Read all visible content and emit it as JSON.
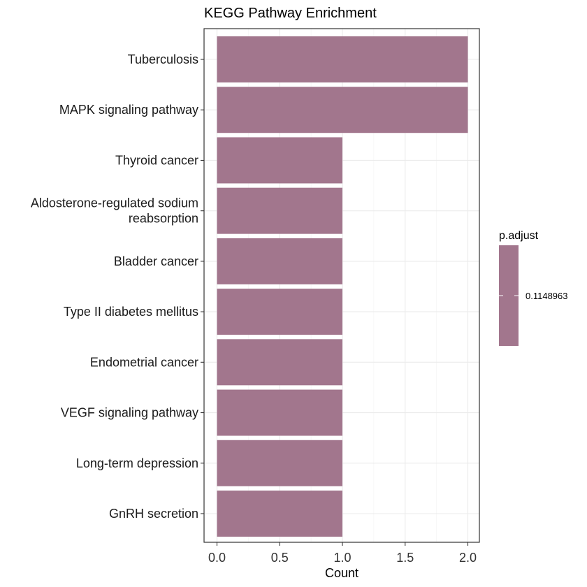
{
  "chart_data": {
    "type": "bar",
    "orientation": "horizontal",
    "title": "KEGG Pathway Enrichment",
    "xlabel": "Count",
    "ylabel": "",
    "xlim": [
      0,
      2
    ],
    "xticks": [
      "0.0",
      "0.5",
      "1.0",
      "1.5",
      "2.0"
    ],
    "grid": true,
    "categories": [
      "Tuberculosis",
      "MAPK signaling pathway",
      "Thyroid cancer",
      "Aldosterone-regulated sodium reabsorption",
      "Bladder cancer",
      "Type II diabetes mellitus",
      "Endometrial cancer",
      "VEGF signaling pathway",
      "Long-term depression",
      "GnRH secretion"
    ],
    "category_display_lines": [
      [
        "Tuberculosis"
      ],
      [
        "MAPK signaling pathway"
      ],
      [
        "Thyroid cancer"
      ],
      [
        "Aldosterone-regulated sodium",
        "reabsorption"
      ],
      [
        "Bladder cancer"
      ],
      [
        "Type II diabetes mellitus"
      ],
      [
        "Endometrial cancer"
      ],
      [
        "VEGF signaling pathway"
      ],
      [
        "Long-term depression"
      ],
      [
        "GnRH secretion"
      ]
    ],
    "values": [
      2,
      2,
      1,
      1,
      1,
      1,
      1,
      1,
      1,
      1
    ],
    "bar_color": "#a2768d",
    "legend": {
      "title": "p.adjust",
      "label": "0.1148963",
      "color": "#a2768d",
      "placement": "right"
    }
  }
}
